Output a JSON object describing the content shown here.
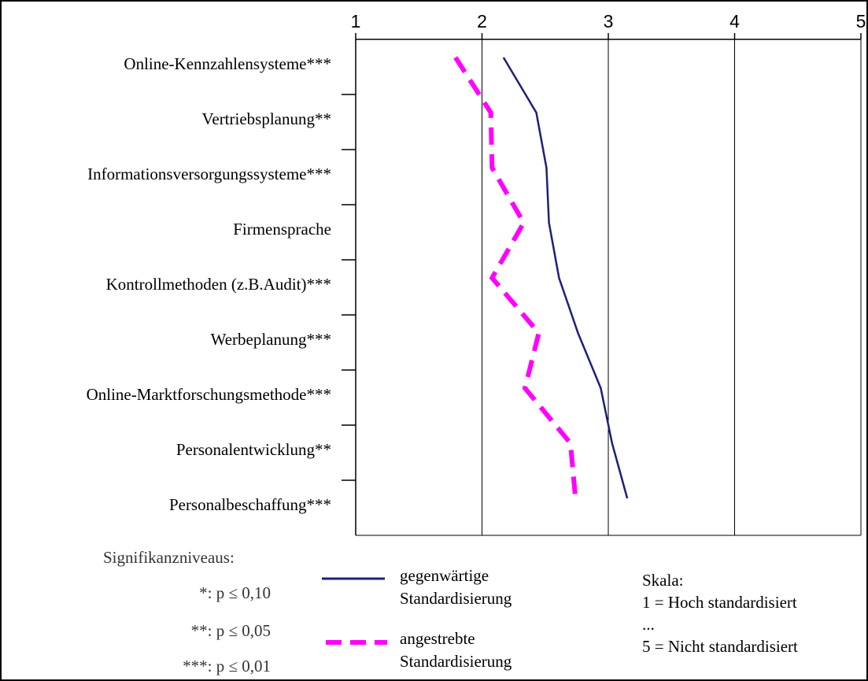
{
  "chart_data": {
    "type": "line",
    "orientation": "horizontal",
    "x_axis_position": "top",
    "xlim": [
      1,
      5
    ],
    "x_ticks": [
      "1",
      "2",
      "3",
      "4",
      "5"
    ],
    "grid": "vertical",
    "categories": [
      "Online-Kennzahlensysteme***",
      "Vertriebsplanung**",
      "Informationsversorgungssysteme***",
      "Firmensprache",
      "Kontrollmethoden (z.B.Audit)***",
      "Werbeplanung***",
      "Online-Marktforschungsmethode***",
      "Personalentwicklung**",
      "Personalbeschaffung***"
    ],
    "series": [
      {
        "name": "gegenwärtige Standardisierung",
        "color": "#1f1f7a",
        "style": "solid",
        "values": [
          2.17,
          2.43,
          2.51,
          2.53,
          2.61,
          2.76,
          2.94,
          3.03,
          3.15
        ]
      },
      {
        "name": "angestrebte Standardisierung",
        "color": "#ff00ff",
        "style": "dashed",
        "values": [
          1.79,
          2.07,
          2.08,
          2.33,
          2.08,
          2.45,
          2.34,
          2.7,
          2.74
        ]
      }
    ]
  },
  "legend": {
    "items": [
      {
        "line1": "gegenwärtige",
        "line2": "Standardisierung"
      },
      {
        "line1": "angestrebte",
        "line2": "Standardisierung"
      }
    ]
  },
  "significance": {
    "title": "Signifikanzniveaus:",
    "levels": [
      "*: p ≤ 0,10",
      "**: p ≤ 0,05",
      "***: p ≤ 0,01"
    ]
  },
  "scale": {
    "title": "Skala:",
    "lines": [
      "1 = Hoch standardisiert",
      "...",
      "5 = Nicht standardisiert"
    ]
  }
}
